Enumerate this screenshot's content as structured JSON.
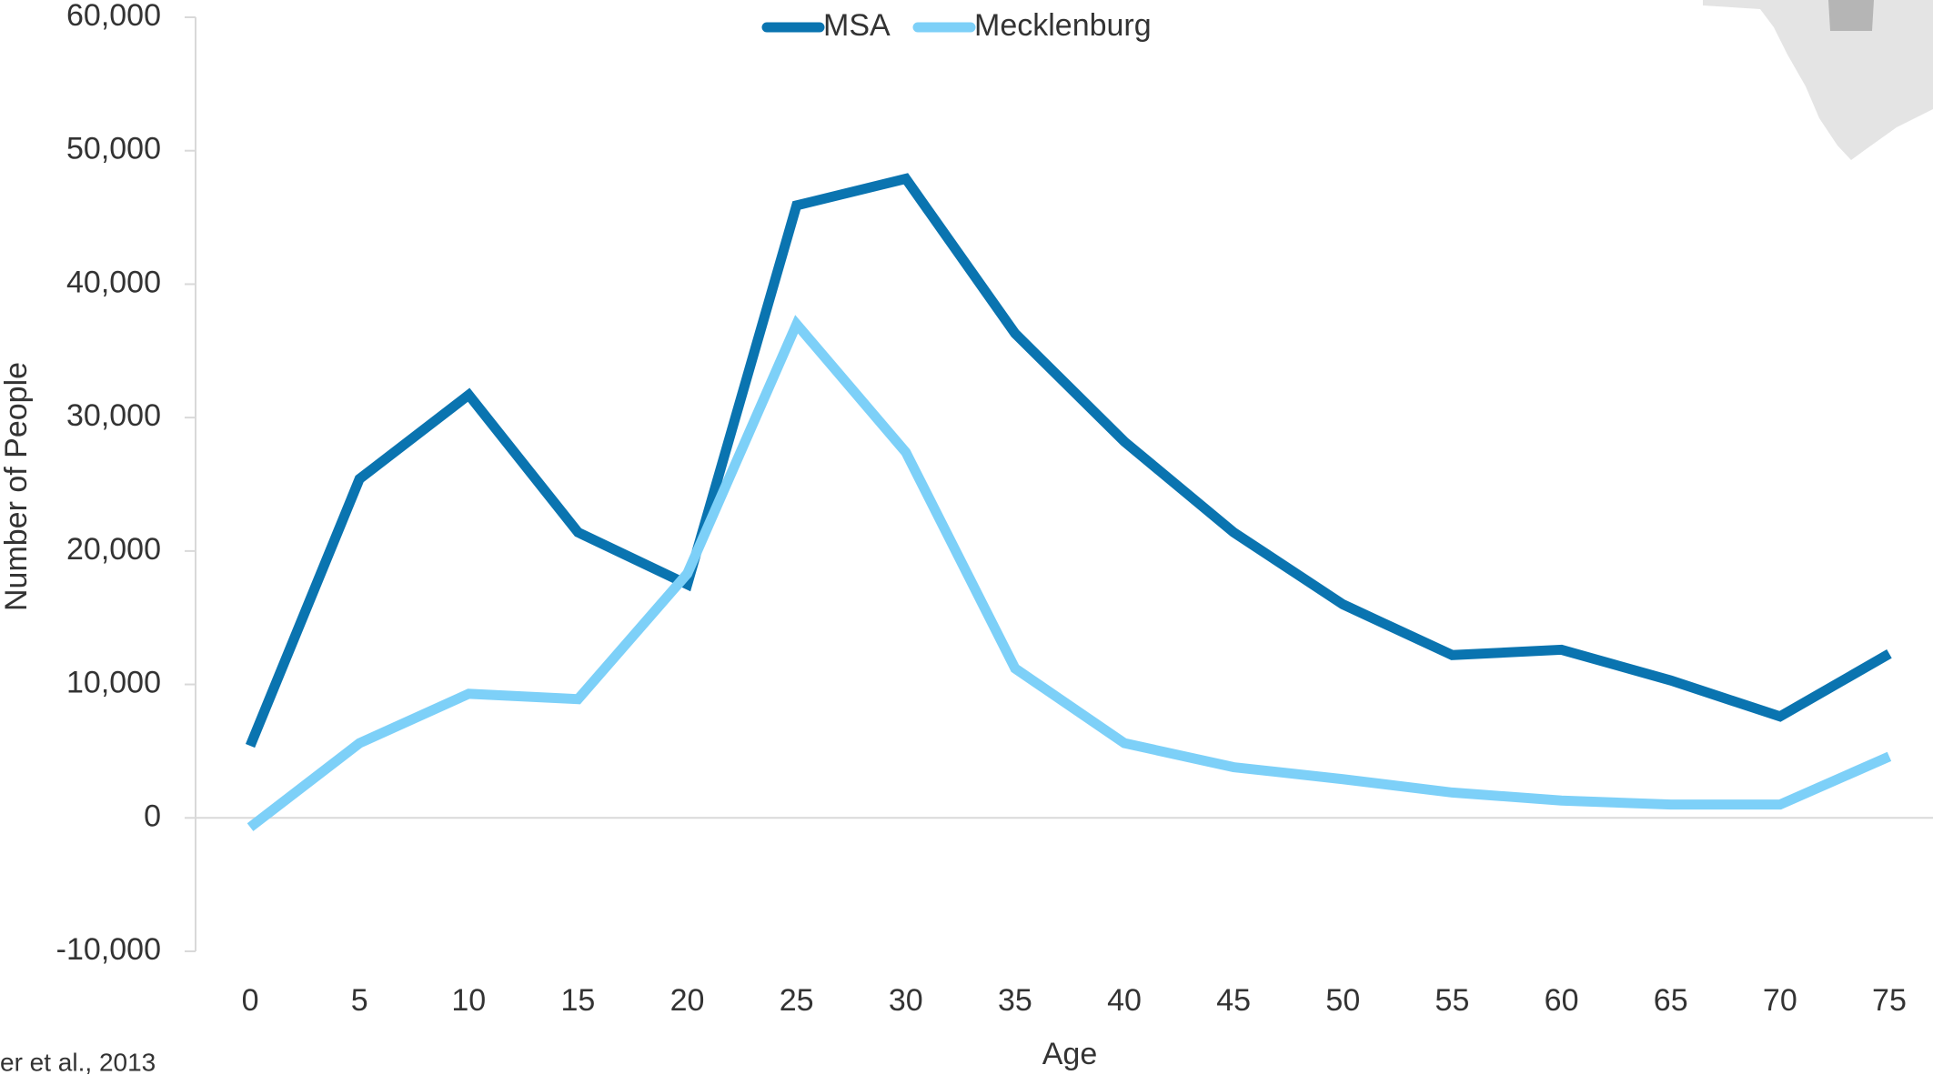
{
  "chart_data": {
    "type": "line",
    "x_label": "Age",
    "y_label": "Number of People",
    "source": "er et al., 2013",
    "x": [
      0,
      5,
      10,
      15,
      20,
      25,
      30,
      35,
      40,
      45,
      50,
      55,
      60,
      65,
      70,
      75
    ],
    "xlim": [
      -2.5,
      77
    ],
    "xticks": [
      0,
      5,
      10,
      15,
      20,
      25,
      30,
      35,
      40,
      45,
      50,
      55,
      60,
      65,
      70,
      75
    ],
    "ylim": [
      -10000,
      60000
    ],
    "yticks": [
      {
        "value": -10000,
        "label": "-10,000"
      },
      0,
      {
        "value": 10000,
        "label": "10,000"
      },
      {
        "value": 20000,
        "label": "20,000"
      },
      {
        "value": 30000,
        "label": "30,000"
      },
      {
        "value": 40000,
        "label": "40,000"
      },
      {
        "value": 50000,
        "label": "50,000"
      },
      {
        "value": 60000,
        "label": "60,000"
      }
    ],
    "legend": "top",
    "series": [
      {
        "name": "MSA",
        "color": "#0a74b0",
        "values": [
          5400,
          25400,
          31700,
          21400,
          17500,
          45900,
          47900,
          36300,
          28200,
          21400,
          16000,
          12200,
          12600,
          10300,
          7600,
          12300
        ]
      },
      {
        "name": "Mecklenburg",
        "color": "#7dd0f8",
        "values": [
          -700,
          5600,
          9300,
          8900,
          18300,
          37000,
          27400,
          11200,
          5600,
          3800,
          2900,
          1900,
          1300,
          1000,
          1000,
          4600
        ]
      }
    ]
  }
}
